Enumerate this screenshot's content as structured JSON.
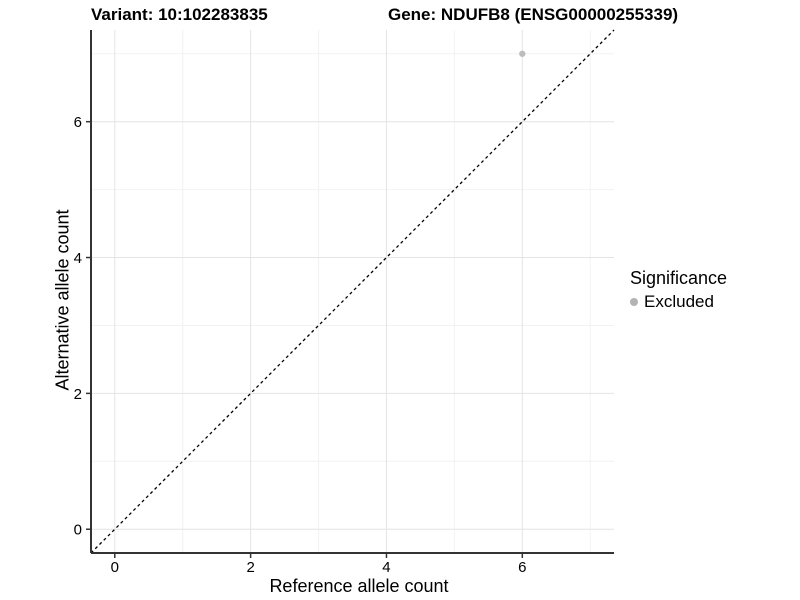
{
  "header": {
    "title_variant": "Variant: 10:102283835",
    "title_gene": "Gene: NDUFB8 (ENSG00000255339)"
  },
  "chart_data": {
    "type": "scatter",
    "titles": {
      "left": "Variant: 10:102283835",
      "right": "Gene: NDUFB8 (ENSG00000255339)"
    },
    "xlabel": "Reference allele count",
    "ylabel": "Alternative allele count",
    "xlim": [
      -0.35,
      7.35
    ],
    "ylim": [
      -0.35,
      7.35
    ],
    "x_major_ticks": [
      0,
      2,
      4,
      6
    ],
    "y_major_ticks": [
      0,
      2,
      4,
      6
    ],
    "x_minor_gridlines": [
      1,
      3,
      5,
      7
    ],
    "y_minor_gridlines": [
      1,
      3,
      5,
      7
    ],
    "grid": "major+minor",
    "points": [
      {
        "x": 6,
        "y": 7,
        "series": "Excluded",
        "color": "#bdbdbd"
      }
    ],
    "reference_line": {
      "type": "identity",
      "style": "dashed",
      "color": "#000000"
    },
    "legend": {
      "title": "Significance",
      "position": "right",
      "items": [
        {
          "label": "Excluded",
          "color": "#b3b3b3",
          "marker": "circle"
        }
      ]
    },
    "colors": {
      "background": "#ffffff",
      "grid_major": "#e4e4e4",
      "grid_minor": "#f2f2f2",
      "axis_line": "#333333",
      "tick": "#333333",
      "text": "#000000",
      "point": "#bdbdbd"
    }
  }
}
